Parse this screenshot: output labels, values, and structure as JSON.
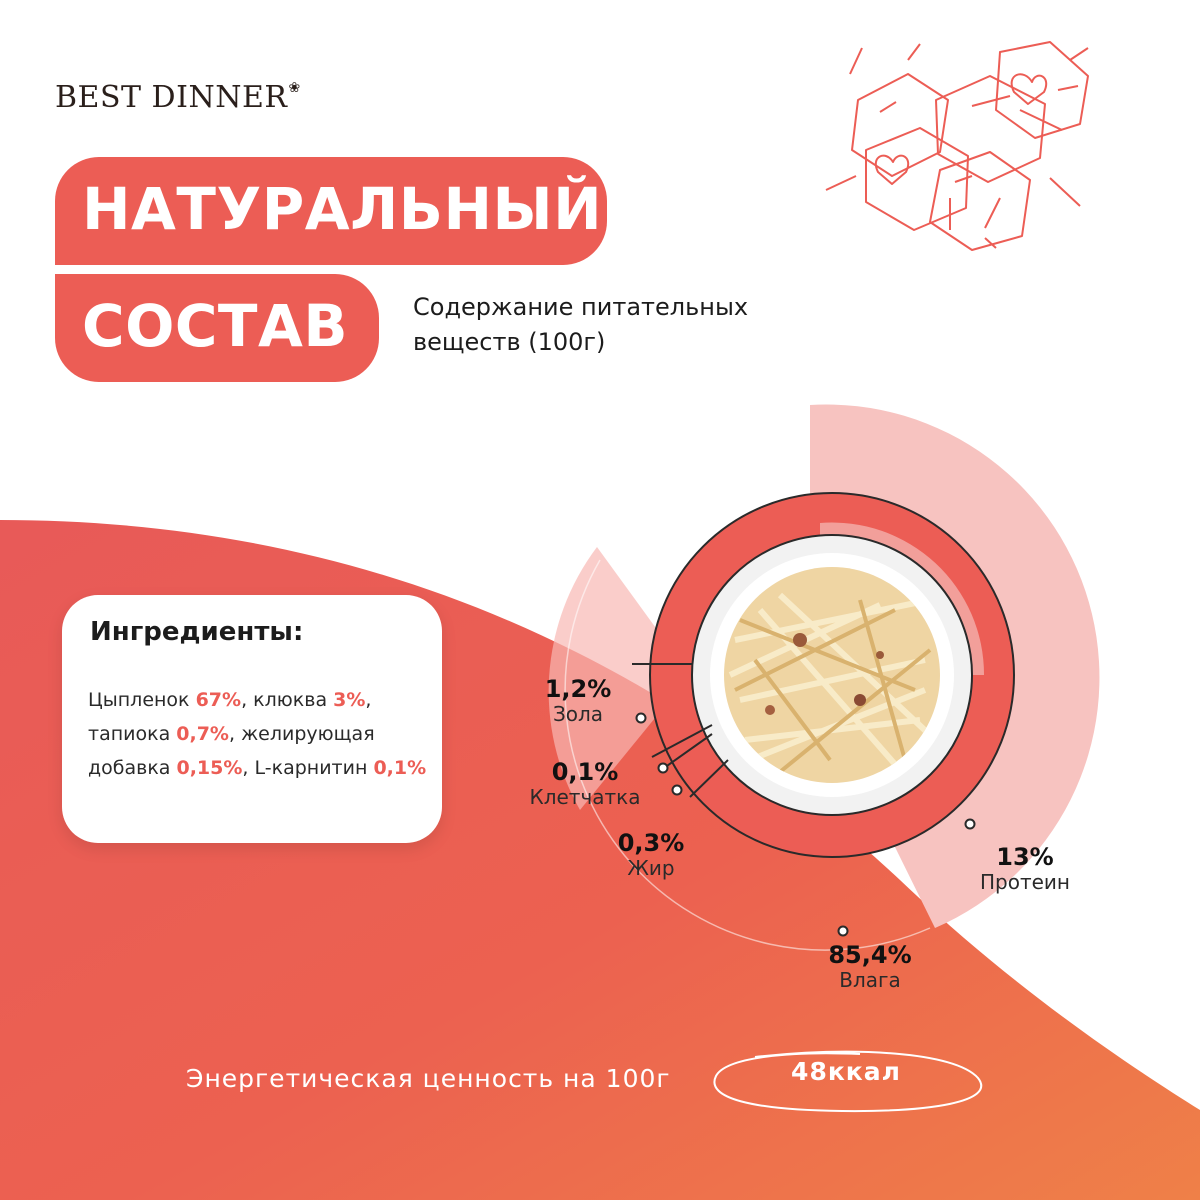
{
  "brand": {
    "name": "BEST DINNER",
    "mark": "❀"
  },
  "headline": {
    "line1": "НАТУРАЛЬНЫЙ",
    "line2": "СОСТАВ"
  },
  "subtitle": "Содержание питательных веществ (100г)",
  "ingredients": {
    "title": "Ингредиенты:",
    "items": [
      {
        "name": "Цыпленок ",
        "percent": "67%",
        "sep": ", "
      },
      {
        "name": "клюква ",
        "percent": "3%",
        "sep": ", "
      },
      {
        "name": "тапиока ",
        "percent": "0,7%",
        "sep": ", "
      },
      {
        "name": "желирующая добавка ",
        "percent": "0,15%",
        "sep": ", "
      },
      {
        "name": "L-карнитин ",
        "percent": "0,1%",
        "sep": ""
      }
    ]
  },
  "nutrients": [
    {
      "key": "ash",
      "percent": "1,2%",
      "label": "Зола"
    },
    {
      "key": "fiber",
      "percent": "0,1%",
      "label": "Клетчатка"
    },
    {
      "key": "fat",
      "percent": "0,3%",
      "label": "Жир"
    },
    {
      "key": "protein",
      "percent": "13%",
      "label": "Протеин"
    },
    {
      "key": "moisture",
      "percent": "85,4%",
      "label": "Влага"
    }
  ],
  "energy": {
    "label": "Энергетическая ценность на 100г",
    "value": "48ккал"
  },
  "colors": {
    "accent": "#ec5d55",
    "light": "#f7c3c0",
    "orange": "#ee7a4b",
    "text": "#1c1c1c"
  },
  "icons": [
    "hexagon-hearts-decoration",
    "food-photo"
  ]
}
